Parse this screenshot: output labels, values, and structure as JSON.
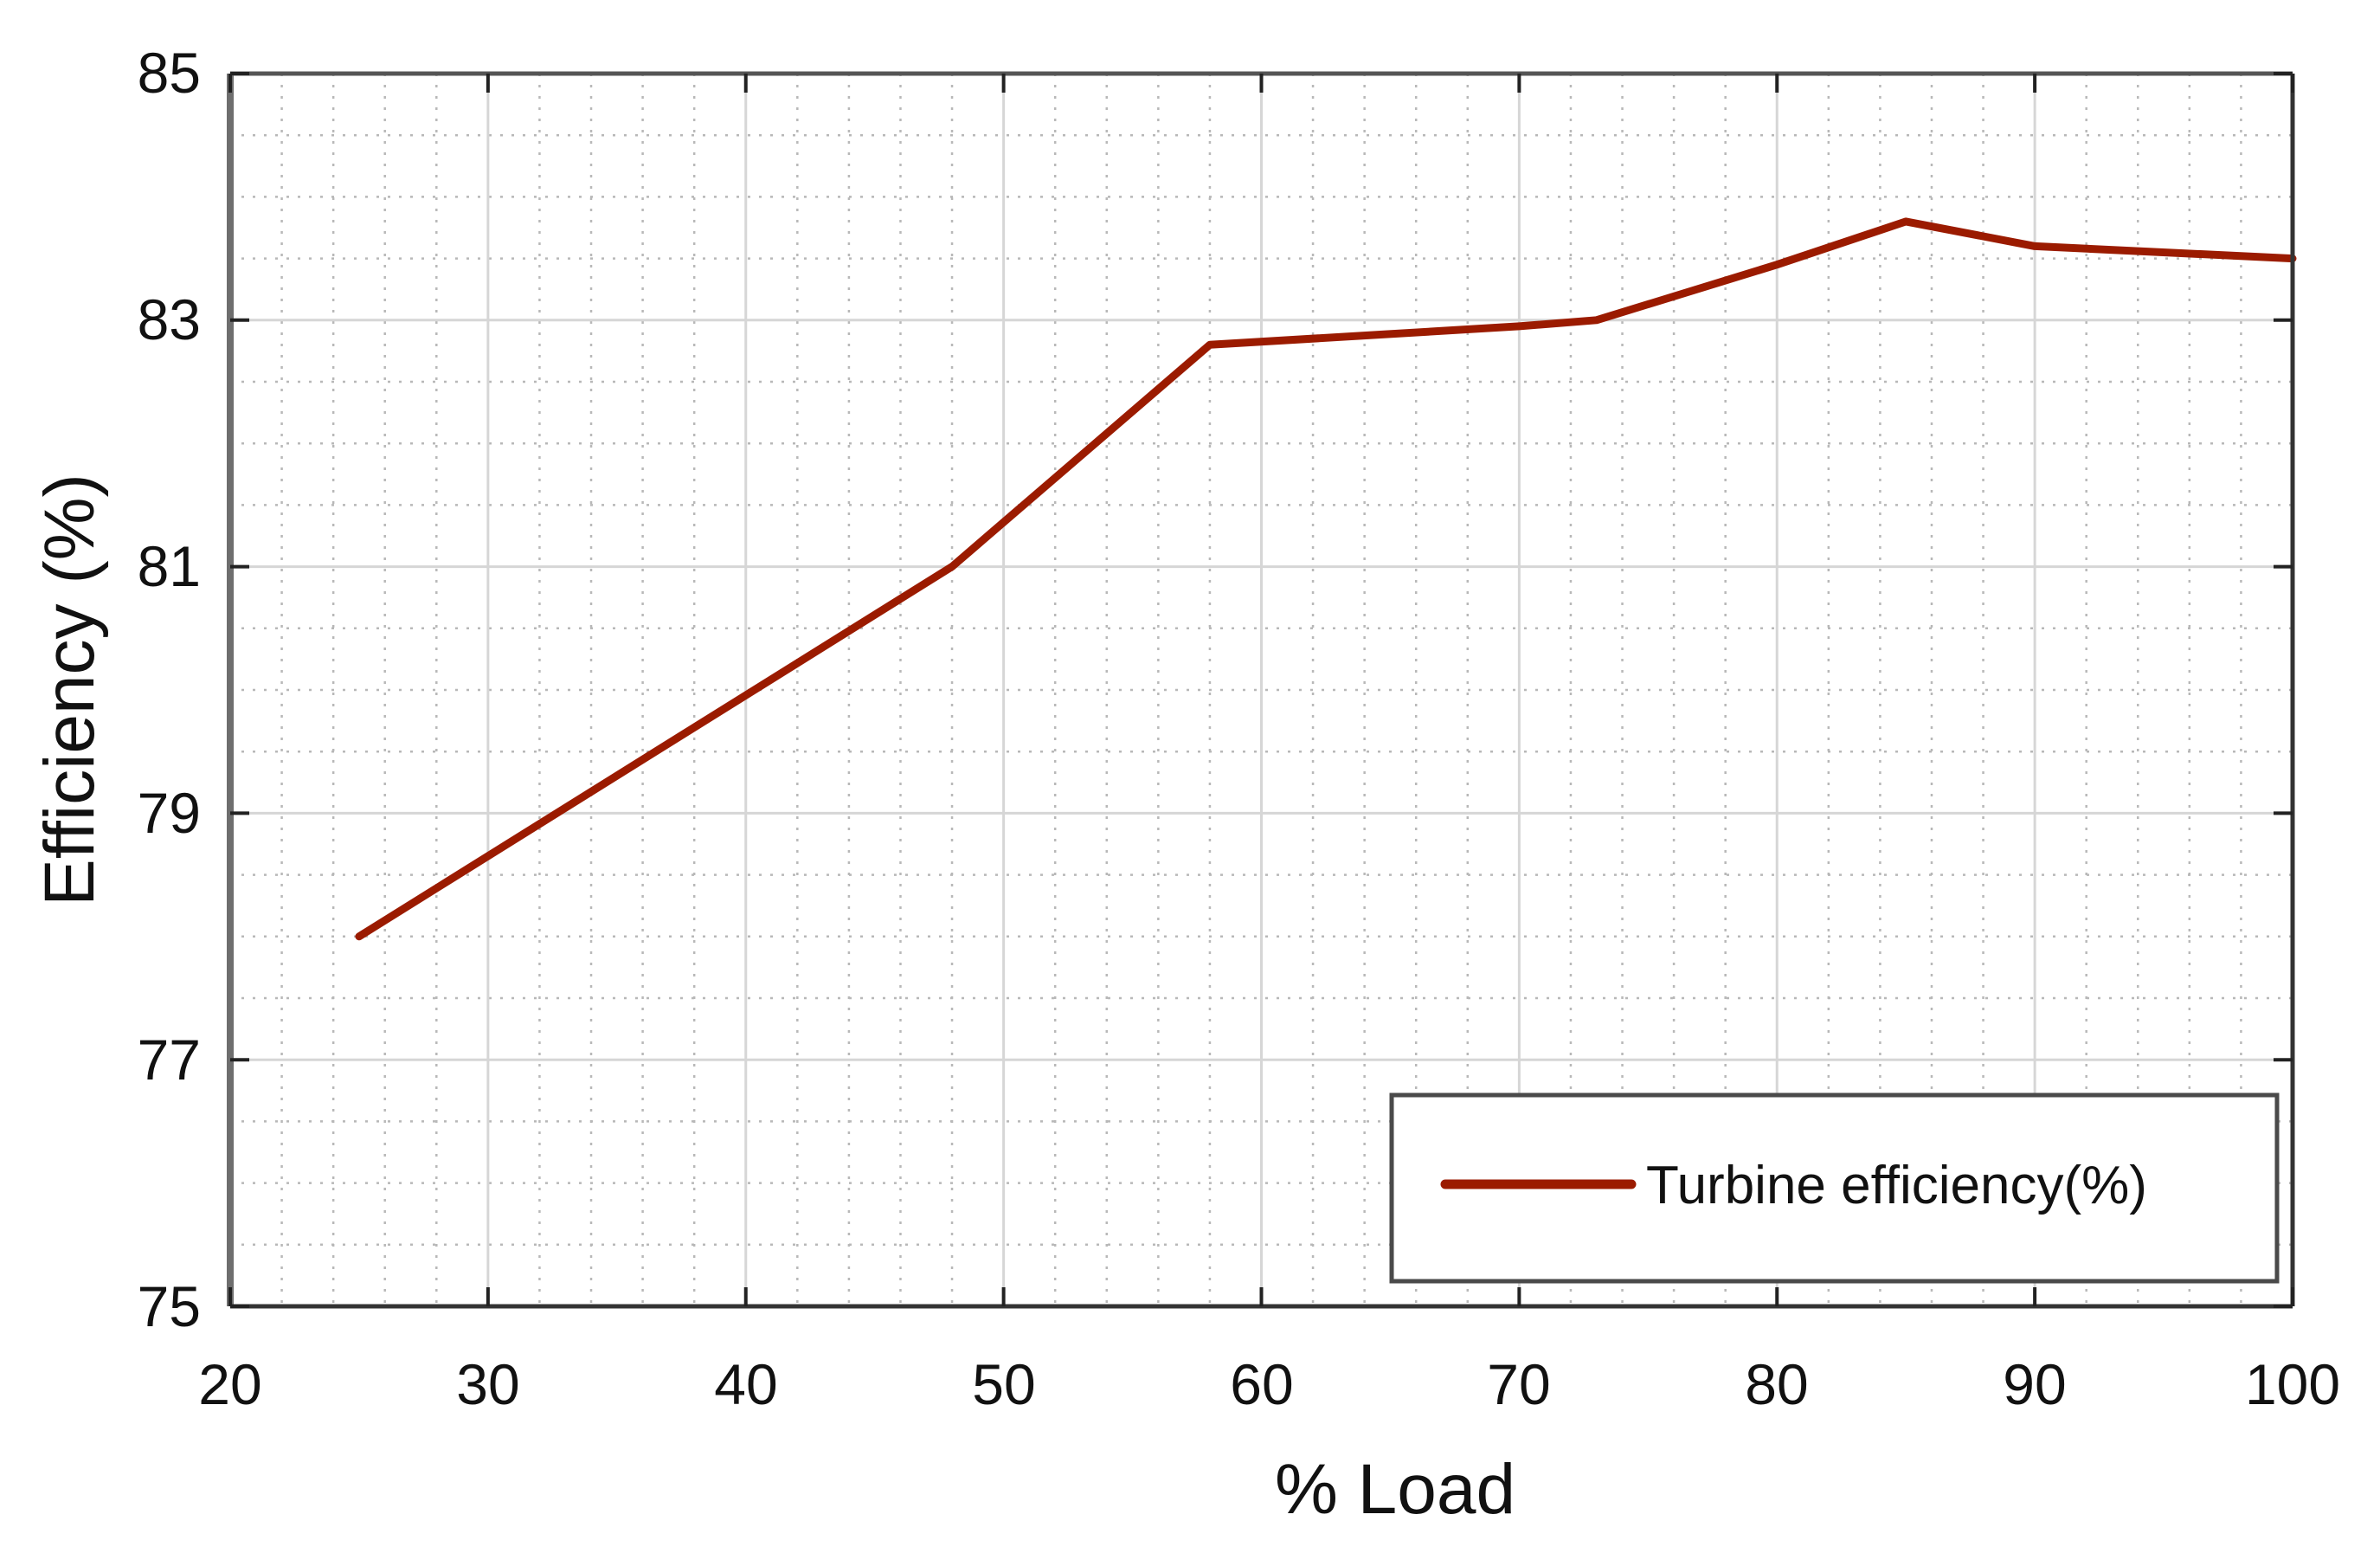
{
  "chart_data": {
    "type": "line",
    "title": "",
    "xlabel": "% Load",
    "ylabel": "Efficiency (%)",
    "xlim": [
      20,
      100
    ],
    "ylim": [
      75,
      85
    ],
    "x_ticks": [
      20,
      30,
      40,
      50,
      60,
      70,
      80,
      90,
      100
    ],
    "y_ticks": [
      75,
      77,
      79,
      81,
      83,
      85
    ],
    "grid": {
      "major": true,
      "minor": true,
      "minor_style": "dotted"
    },
    "legend_position": "lower right",
    "series": [
      {
        "name": "Turbine efficiency(%)",
        "color": "#9b1b00",
        "x": [
          25,
          48,
          58,
          70,
          73,
          80,
          85,
          90,
          100
        ],
        "values": [
          78.0,
          81.0,
          82.8,
          82.95,
          83.0,
          83.45,
          83.8,
          83.6,
          83.5
        ]
      }
    ]
  },
  "axes": {
    "xlabel": "% Load",
    "ylabel": "Efficiency (%)",
    "x_tick_labels": [
      "20",
      "30",
      "40",
      "50",
      "60",
      "70",
      "80",
      "90",
      "100"
    ],
    "y_tick_labels": [
      "75",
      "77",
      "79",
      "81",
      "83",
      "85"
    ]
  },
  "legend": {
    "label": "Turbine efficiency(%)"
  }
}
